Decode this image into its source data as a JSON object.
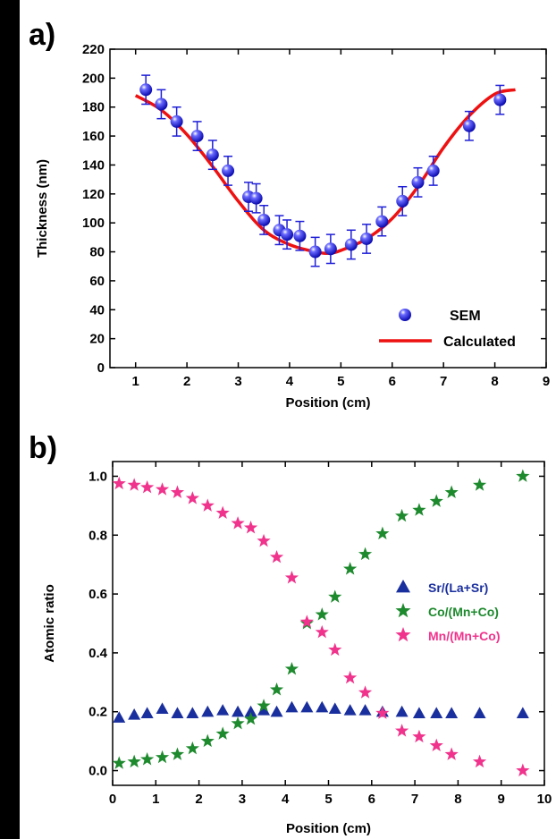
{
  "colors": {
    "sem": "#1f1fd8",
    "calculated": "#ee1111",
    "sr": "#1a2f9e",
    "co": "#1e8a2e",
    "mn": "#f0338c",
    "axis": "#000000"
  },
  "chart_data": [
    {
      "panel": "a)",
      "type": "scatter",
      "xlabel": "Position (cm)",
      "ylabel": "Thickness (nm)",
      "xlim": [
        0.5,
        9
      ],
      "ylim": [
        0,
        220
      ],
      "xticks": [
        1,
        2,
        3,
        4,
        5,
        6,
        7,
        8,
        9
      ],
      "yticks": [
        0,
        20,
        40,
        60,
        80,
        100,
        120,
        140,
        160,
        180,
        200,
        220
      ],
      "legend_position": "bottom-right",
      "series": [
        {
          "name": "SEM",
          "marker": "sphere",
          "error": 10,
          "x": [
            1.2,
            1.5,
            1.8,
            2.2,
            2.5,
            2.8,
            3.2,
            3.35,
            3.5,
            3.8,
            3.95,
            4.2,
            4.5,
            4.8,
            5.2,
            5.5,
            5.8,
            6.2,
            6.5,
            6.8,
            7.5,
            8.1
          ],
          "y": [
            192,
            182,
            170,
            160,
            147,
            136,
            118,
            117,
            102,
            95,
            92,
            91,
            80,
            82,
            85,
            89,
            101,
            115,
            128,
            136,
            167,
            185
          ]
        },
        {
          "name": "Calculated",
          "line": true,
          "x": [
            1.0,
            1.5,
            2.0,
            2.5,
            3.0,
            3.5,
            4.0,
            4.5,
            4.75,
            5.0,
            5.5,
            6.0,
            6.5,
            7.0,
            7.5,
            8.0,
            8.4
          ],
          "y": [
            188,
            178,
            161,
            139,
            115,
            95,
            85,
            80,
            79,
            81,
            89,
            103,
            125,
            152,
            174,
            189,
            192
          ]
        }
      ]
    },
    {
      "panel": "b)",
      "type": "scatter",
      "xlabel": "Position (cm)",
      "ylabel": "Atomic ratio",
      "xlim": [
        0,
        10
      ],
      "ylim": [
        -0.05,
        1.05
      ],
      "xticks": [
        0,
        1,
        2,
        3,
        4,
        5,
        6,
        7,
        8,
        9,
        10
      ],
      "yticks": [
        0.0,
        0.2,
        0.4,
        0.6,
        0.8,
        1.0
      ],
      "ytick_labels": [
        "0.0",
        "0.2",
        "0.4",
        "0.6",
        "0.8",
        "1.0"
      ],
      "legend_position": "right",
      "series": [
        {
          "name": "Sr/(La+Sr)",
          "marker": "triangle",
          "x": [
            0.15,
            0.5,
            0.8,
            1.15,
            1.5,
            1.85,
            2.2,
            2.55,
            2.9,
            3.2,
            3.5,
            3.8,
            4.15,
            4.5,
            4.85,
            5.15,
            5.5,
            5.85,
            6.25,
            6.7,
            7.1,
            7.5,
            7.85,
            8.5,
            9.5
          ],
          "y": [
            0.18,
            0.19,
            0.195,
            0.21,
            0.195,
            0.195,
            0.2,
            0.205,
            0.2,
            0.2,
            0.205,
            0.2,
            0.215,
            0.215,
            0.215,
            0.21,
            0.205,
            0.205,
            0.2,
            0.2,
            0.195,
            0.195,
            0.195,
            0.195,
            0.195
          ]
        },
        {
          "name": "Co/(Mn+Co)",
          "marker": "star",
          "x": [
            0.15,
            0.5,
            0.8,
            1.15,
            1.5,
            1.85,
            2.2,
            2.55,
            2.9,
            3.2,
            3.5,
            3.8,
            4.15,
            4.5,
            4.85,
            5.15,
            5.5,
            5.85,
            6.25,
            6.7,
            7.1,
            7.5,
            7.85,
            8.5,
            9.5
          ],
          "y": [
            0.025,
            0.03,
            0.038,
            0.045,
            0.055,
            0.075,
            0.1,
            0.125,
            0.16,
            0.175,
            0.22,
            0.275,
            0.345,
            0.5,
            0.53,
            0.59,
            0.685,
            0.735,
            0.805,
            0.865,
            0.885,
            0.915,
            0.945,
            0.97,
            1.0
          ]
        },
        {
          "name": "Mn/(Mn+Co)",
          "marker": "star",
          "x": [
            0.15,
            0.5,
            0.8,
            1.15,
            1.5,
            1.85,
            2.2,
            2.55,
            2.9,
            3.2,
            3.5,
            3.8,
            4.15,
            4.5,
            4.85,
            5.15,
            5.5,
            5.85,
            6.25,
            6.7,
            7.1,
            7.5,
            7.85,
            8.5,
            9.5
          ],
          "y": [
            0.975,
            0.97,
            0.962,
            0.955,
            0.945,
            0.925,
            0.9,
            0.875,
            0.84,
            0.825,
            0.78,
            0.725,
            0.655,
            0.505,
            0.47,
            0.41,
            0.315,
            0.265,
            0.195,
            0.135,
            0.115,
            0.085,
            0.055,
            0.03,
            0.0
          ]
        }
      ]
    }
  ]
}
